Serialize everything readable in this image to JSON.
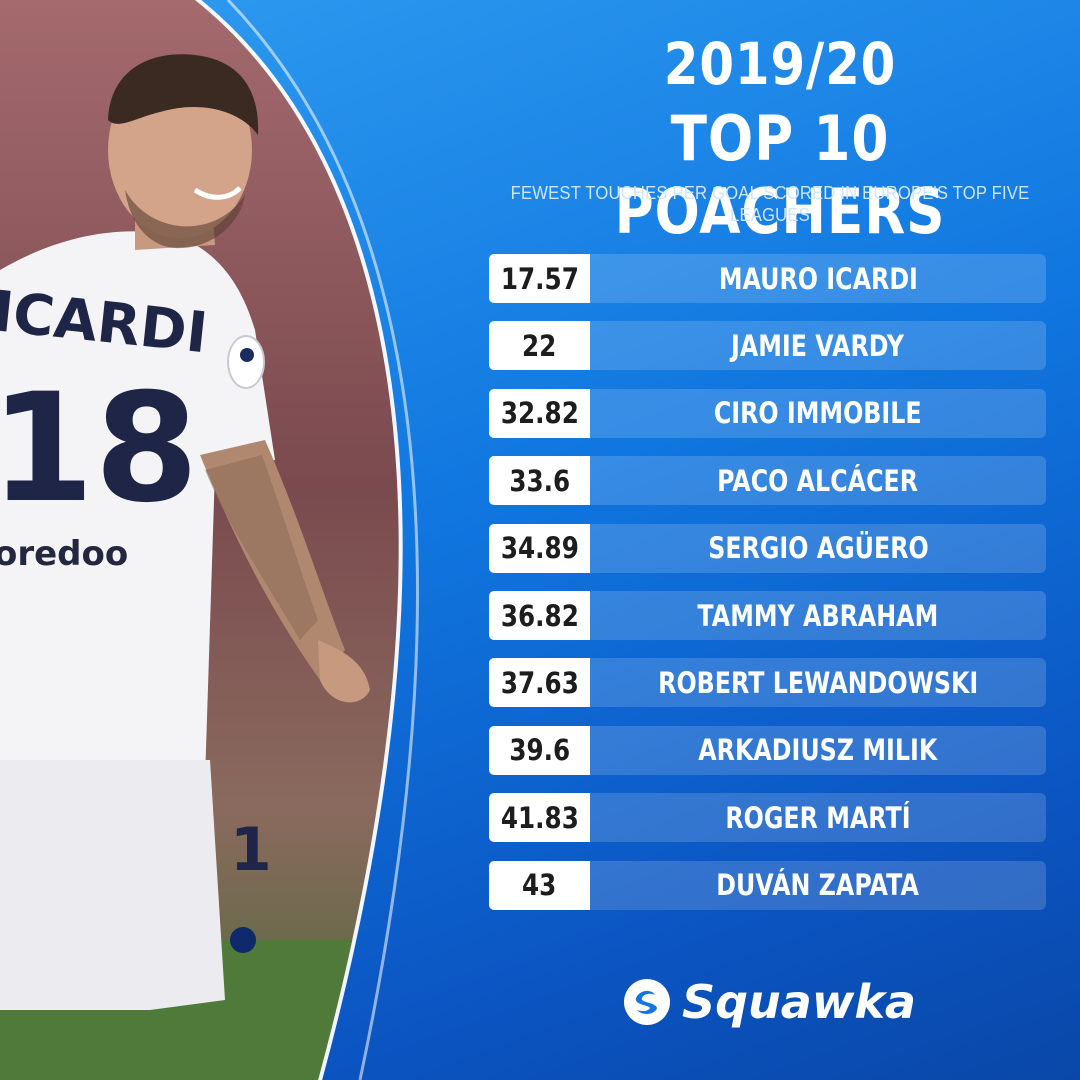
{
  "header": {
    "season": "2019/20",
    "title": "TOP 10 POACHERS",
    "subtitle": "FEWEST TOUCHES PER GOAL SCORED IN EUROPE'S TOP FIVE LEAGUES"
  },
  "photo": {
    "shirt_name": "ICARDI",
    "shirt_number": "18",
    "sponsor": "oredoo"
  },
  "rows": [
    {
      "value": "17.57",
      "name": "MAURO ICARDI"
    },
    {
      "value": "22",
      "name": "JAMIE VARDY"
    },
    {
      "value": "32.82",
      "name": "CIRO IMMOBILE"
    },
    {
      "value": "33.6",
      "name": "PACO ALCÁCER"
    },
    {
      "value": "34.89",
      "name": "SERGIO AGÜERO"
    },
    {
      "value": "36.82",
      "name": "TAMMY ABRAHAM"
    },
    {
      "value": "37.63",
      "name": "ROBERT LEWANDOWSKI"
    },
    {
      "value": "39.6",
      "name": "ARKADIUSZ MILIK"
    },
    {
      "value": "41.83",
      "name": "ROGER MARTÍ"
    },
    {
      "value": "43",
      "name": "DUVÁN ZAPATA"
    }
  ],
  "brand": {
    "name": "Squawka",
    "icon": "squawka-logo-icon"
  },
  "colors": {
    "background": "#1177e0",
    "row_bar": "#ffffff",
    "text": "#ffffff",
    "value_text": "#1d1d1d"
  }
}
